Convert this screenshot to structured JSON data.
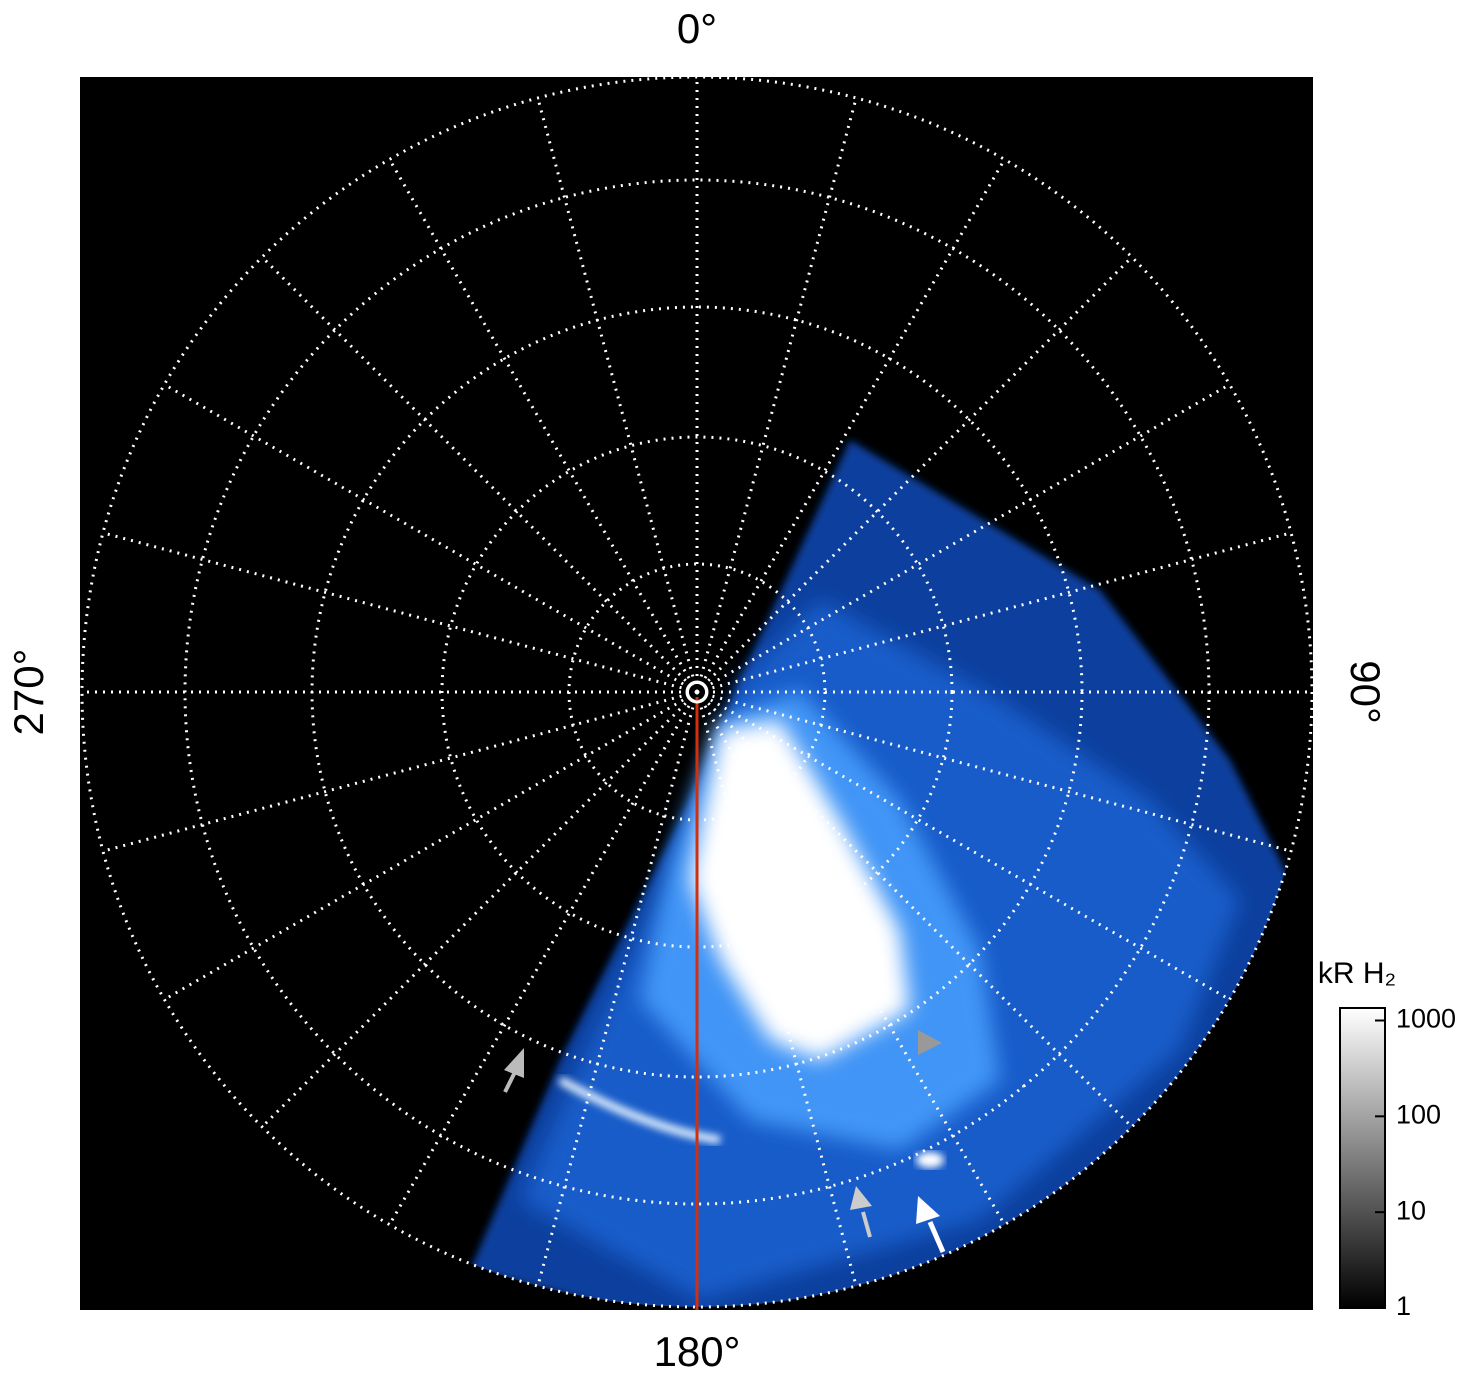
{
  "chart_data": {
    "type": "polar-image",
    "angle_ticks": [
      {
        "value": 0,
        "label": "0°"
      },
      {
        "value": 90,
        "label": "90°"
      },
      {
        "value": 180,
        "label": "180°"
      },
      {
        "value": 270,
        "label": "270°"
      }
    ],
    "colorbar": {
      "label": "kR H₂",
      "log": true,
      "lim": [
        1,
        1350
      ],
      "ticks": [
        1,
        10,
        100,
        1000
      ]
    }
  }
}
